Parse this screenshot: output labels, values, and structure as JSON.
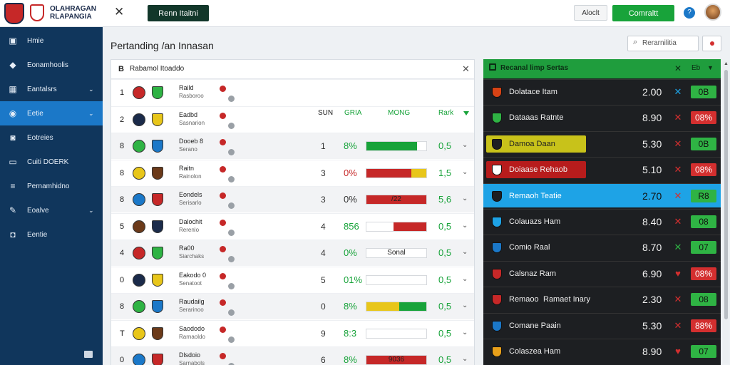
{
  "header": {
    "brand_line1": "OLAHRAGAN",
    "brand_line2": "RLAPANGIA",
    "dark_button": "Renn Itaitni",
    "light_button": "Aloclt",
    "green_button": "Comraltt",
    "help_icon": "question-icon",
    "colors": {
      "accent_green": "#18a33a",
      "dark_button": "#12372a",
      "sidebar": "#10365c",
      "sidebar_active": "#1b78c8"
    }
  },
  "sidebar": {
    "items": [
      {
        "label": "Hmie",
        "icon": "shirt-icon",
        "chevron": false,
        "active": false
      },
      {
        "label": "Eonamhoolis",
        "icon": "tag-icon",
        "chevron": false,
        "active": false
      },
      {
        "label": "Eantalsrs",
        "icon": "grid-icon",
        "chevron": true,
        "active": false
      },
      {
        "label": "Eetie",
        "icon": "circle-icon",
        "chevron": true,
        "active": true
      },
      {
        "label": "Eotreies",
        "icon": "person-icon",
        "chevron": false,
        "active": false
      },
      {
        "label": "Cuiti DOERK",
        "icon": "monitor-icon",
        "chevron": false,
        "active": false
      },
      {
        "label": "Pernamhidno",
        "icon": "list-icon",
        "chevron": false,
        "active": false
      },
      {
        "label": "Eoalve",
        "icon": "tools-icon",
        "chevron": true,
        "active": false
      },
      {
        "label": "Eentie",
        "icon": "camera-icon",
        "chevron": false,
        "active": false
      }
    ]
  },
  "page": {
    "title": "Pertanding /an Innasan",
    "search_placeholder": "Rerarnilitia"
  },
  "standings": {
    "panel_title": "Rabamol Itoaddo",
    "panel_icon_text": "B",
    "columns": {
      "played": "SUN",
      "pct": "GRIA",
      "bar": "MONG",
      "form": "Rark"
    },
    "rows": [
      {
        "rank": "1",
        "name": "Raild",
        "sub": "Rasboroo",
        "played": "",
        "pct": "",
        "pct_color": "#18a33a",
        "bar": [],
        "bar_text": "",
        "form": ""
      },
      {
        "rank": "2",
        "name": "Eadbd",
        "sub": "Sasnarion",
        "played": "",
        "pct": "",
        "pct_color": "#18a33a",
        "bar": [],
        "bar_text": "",
        "form": ""
      },
      {
        "rank": "8",
        "name": "Dooeb 8",
        "sub": "Serano",
        "played": "1",
        "pct": "8%",
        "pct_color": "#18a33a",
        "bar": [
          {
            "color": "#18a33a",
            "start": 0,
            "end": 0.85
          }
        ],
        "bar_text": "",
        "form": "0,5"
      },
      {
        "rank": "8",
        "name": "Raitn",
        "sub": "Rainolon",
        "played": "3",
        "pct": "0%",
        "pct_color": "#c62828",
        "bar": [
          {
            "color": "#c62828",
            "start": 0,
            "end": 0.75
          },
          {
            "color": "#e8c61a",
            "start": 0.75,
            "end": 1
          }
        ],
        "bar_text": "",
        "form": "1,5"
      },
      {
        "rank": "8",
        "name": "Eondels",
        "sub": "Serisarlo",
        "played": "3",
        "pct": "0%",
        "pct_color": "#333333",
        "bar": [
          {
            "color": "#c62828",
            "start": 0,
            "end": 1
          }
        ],
        "bar_text": "/22",
        "form": "5,6"
      },
      {
        "rank": "5",
        "name": "Dalochit",
        "sub": "Rerenlo",
        "played": "4",
        "pct": "856",
        "pct_color": "#18a33a",
        "bar": [
          {
            "color": "#c62828",
            "start": 0.45,
            "end": 1
          }
        ],
        "bar_text": "",
        "form": "0,5"
      },
      {
        "rank": "4",
        "name": "Ra00",
        "sub": "Siarchaks",
        "played": "4",
        "pct": "0%",
        "pct_color": "#18a33a",
        "bar": [],
        "bar_text": "Sonal",
        "form": "0,5"
      },
      {
        "rank": "0",
        "name": "Eakodo 0",
        "sub": "Senatoot",
        "played": "5",
        "pct": "01%",
        "pct_color": "#18a33a",
        "bar": [],
        "bar_text": "",
        "form": "0,5"
      },
      {
        "rank": "8",
        "name": "Raudailg",
        "sub": "Serarinoo",
        "played": "0",
        "pct": "8%",
        "pct_color": "#18a33a",
        "bar": [
          {
            "color": "#e8c61a",
            "start": 0,
            "end": 0.55
          },
          {
            "color": "#18a33a",
            "start": 0.55,
            "end": 1
          }
        ],
        "bar_text": "",
        "form": "0,5"
      },
      {
        "rank": "T",
        "name": "Saododo",
        "sub": "Rarnaoldo",
        "played": "9",
        "pct": "8:3",
        "pct_color": "#18a33a",
        "bar": [],
        "bar_text": "",
        "form": "0,5"
      },
      {
        "rank": "0",
        "name": "Dlsdoio",
        "sub": "Sarnabols",
        "played": "6",
        "pct": "8%",
        "pct_color": "#18a33a",
        "bar": [
          {
            "color": "#c62828",
            "start": 0,
            "end": 1
          }
        ],
        "bar_text": "9036",
        "form": "0,5"
      }
    ]
  },
  "odds": {
    "title": "Recanal limp Sertas",
    "head_x": "✕",
    "head_t2": "Eb",
    "rows": [
      {
        "name": "Dolatace Itam",
        "odds": "2.00",
        "mark": "✕",
        "mark_color": "#1ea3e6",
        "badge": "0B",
        "badge_type": "up",
        "style": "",
        "crest": "#d84315"
      },
      {
        "name": "Dataaas Ratnte",
        "odds": "8.90",
        "mark": "✕",
        "mark_color": "#d32f2f",
        "badge": "08%",
        "badge_type": "down",
        "style": "",
        "crest": "#2fb344"
      },
      {
        "name": "Damoa Daan",
        "odds": "5.30",
        "mark": "✕",
        "mark_color": "#d32f2f",
        "badge": "0B",
        "badge_type": "up",
        "style": "hl-yellow",
        "crest": "#1d1f22"
      },
      {
        "name": "Doiaase Rehaob",
        "odds": "5.10",
        "mark": "✕",
        "mark_color": "#d32f2f",
        "badge": "08%",
        "badge_type": "down",
        "style": "hl-red",
        "crest": "#ffffff"
      },
      {
        "name": "Remaoh Teatie",
        "odds": "2.70",
        "mark": "✕",
        "mark_color": "#d32f2f",
        "badge": "R8",
        "badge_type": "up",
        "style": "blue",
        "crest": "#1d1f22"
      },
      {
        "name": "Colauazs Ham",
        "odds": "8.40",
        "mark": "✕",
        "mark_color": "#d32f2f",
        "badge": "08",
        "badge_type": "up",
        "style": "",
        "crest": "#1ea3e6"
      },
      {
        "name": "Comio Raal",
        "odds": "8.70",
        "mark": "✕",
        "mark_color": "#2fb344",
        "badge": "07",
        "badge_type": "up",
        "style": "",
        "crest": "#1b78c8"
      },
      {
        "name": "Calsnaz Ram",
        "odds": "6.90",
        "mark": "♥",
        "mark_color": "#d32f2f",
        "badge": "08%",
        "badge_type": "down",
        "style": "",
        "crest": "#c62828"
      },
      {
        "name": "Remaoo",
        "odds": "2.30",
        "mark": "✕",
        "mark_color": "#d32f2f",
        "badge": "08",
        "badge_type": "up",
        "style": "",
        "crest": "#c62828",
        "name2": "Ramaet Inary"
      },
      {
        "name": "Comane Paain",
        "odds": "5.30",
        "mark": "✕",
        "mark_color": "#d32f2f",
        "badge": "88%",
        "badge_type": "down",
        "style": "",
        "crest": "#1b78c8"
      },
      {
        "name": "Colaszea Ham",
        "odds": "8.90",
        "mark": "♥",
        "mark_color": "#d32f2f",
        "badge": "07",
        "badge_type": "up",
        "style": "",
        "crest": "#e8a01a"
      }
    ]
  }
}
